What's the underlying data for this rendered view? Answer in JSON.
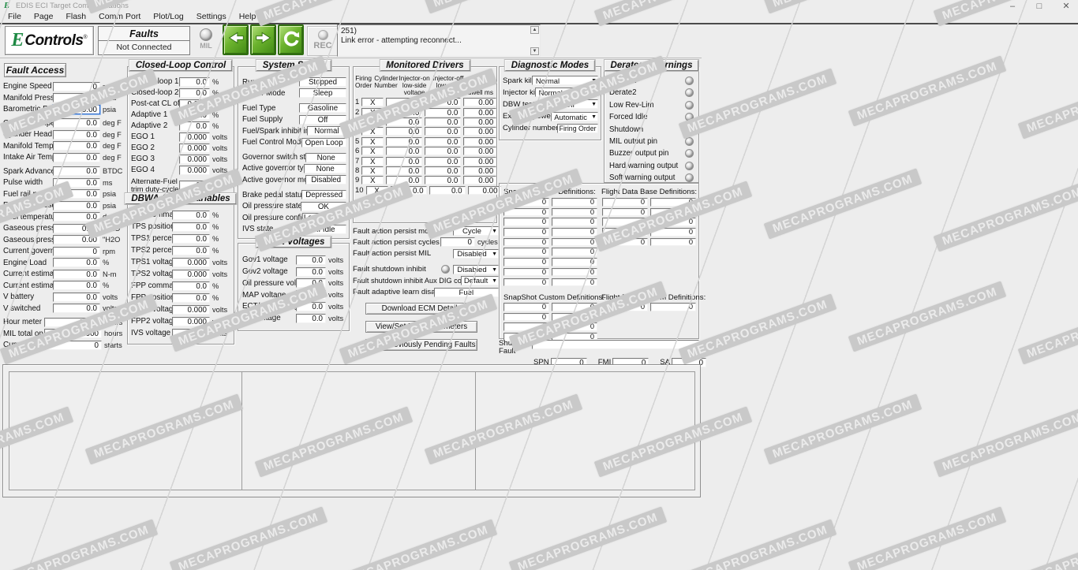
{
  "watermark": {
    "text": "MECAPROGRAMS.COM"
  },
  "window": {
    "title": "EDIS ECI Target Communications",
    "icon": "E",
    "controls": {
      "minimize": "–",
      "maximize": "□",
      "close": "✕"
    }
  },
  "menu": {
    "items": [
      {
        "label": "File"
      },
      {
        "label": "Page"
      },
      {
        "label": "Flash"
      },
      {
        "label": "Comm Port"
      },
      {
        "label": "Plot/Log"
      },
      {
        "label": "Settings"
      },
      {
        "label": "Help"
      }
    ]
  },
  "toolbar": {
    "logo": {
      "e": "E",
      "rest": "Controls",
      "reg": "®"
    },
    "faults_label": "Faults",
    "connection_status": "Not Connected",
    "mil_label": "MIL",
    "rec_label": "REC",
    "message": {
      "line1": "251)",
      "line2": "Link error - attempting reconnect..."
    }
  },
  "fault_access": {
    "title": "Fault Access",
    "fields": [
      {
        "label": "Engine Speed",
        "value": "0",
        "unit": "rpm"
      },
      {
        "label": "Manifold Pressure",
        "value": "0.00",
        "unit": "psia"
      },
      {
        "label": "Barometric Pressure",
        "value": "0.00",
        "unit": "psia",
        "focused": true
      },
      {
        "label": "Coolant Temperature",
        "value": "0.0",
        "unit": "deg F",
        "gap": true
      },
      {
        "label": "Cylinder Head Temp",
        "value": "0.0",
        "unit": "deg F"
      },
      {
        "label": "Manifold Temperature",
        "value": "0.0",
        "unit": "deg F"
      },
      {
        "label": "Intake Air Temperature",
        "value": "0.0",
        "unit": "deg F"
      },
      {
        "label": "Spark Advance",
        "value": "0.0",
        "unit": "BTDC",
        "gap": true
      },
      {
        "label": "Pulse width",
        "value": "0.0",
        "unit": "ms"
      },
      {
        "label": "Fuel rail pressure - Pri",
        "value": "0.0",
        "unit": "psia"
      },
      {
        "label": "Fuel rail pressure - Sec",
        "value": "0.0",
        "unit": "psia"
      },
      {
        "label": "Fuel temperature",
        "value": "0.0",
        "unit": "deg F"
      },
      {
        "label": "Gaseous pressure target",
        "value": "0.00",
        "unit": "\"H2O"
      },
      {
        "label": "Gaseous pressure actual",
        "value": "0.00",
        "unit": "\"H2O"
      },
      {
        "label": "Current governor target",
        "value": "0",
        "unit": "rpm"
      },
      {
        "label": "Engine Load",
        "value": "0.0",
        "unit": "%"
      },
      {
        "label": "Current estimated torque",
        "value": "0.0",
        "unit": "N-m"
      },
      {
        "label": "Current estimated torque",
        "value": "0.0",
        "unit": "%"
      },
      {
        "label": "V battery",
        "value": "0.0",
        "unit": "volts"
      },
      {
        "label": "V switched",
        "value": "0.0",
        "unit": "volts"
      },
      {
        "label": "Hour meter",
        "value": "0.000",
        "unit": "hours",
        "gap": true,
        "wide": true
      },
      {
        "label": "MIL total on-time",
        "value": "0.000",
        "unit": "hours",
        "wide": true
      },
      {
        "label": "Cumulative starts",
        "value": "0",
        "unit": "starts",
        "wide": true
      }
    ]
  },
  "closed_loop": {
    "title": "Closed-Loop Control",
    "fields": [
      {
        "label": "Closed-loop 1",
        "value": "0.0",
        "unit": "%"
      },
      {
        "label": "Closed-loop 2",
        "value": "0.0",
        "unit": "%"
      },
      {
        "label": "Post-cat CL offset",
        "value": "0.000",
        "unit": "phi"
      },
      {
        "label": "Adaptive 1",
        "value": "0.0",
        "unit": "%"
      },
      {
        "label": "Adaptive 2",
        "value": "0.0",
        "unit": "%"
      },
      {
        "label": "EGO 1",
        "value": "0.000",
        "unit": "volts"
      },
      {
        "label": "EGO 2",
        "value": "0.000",
        "unit": "volts"
      },
      {
        "label": "EGO 3",
        "value": "0.000",
        "unit": "volts"
      },
      {
        "label": "EGO 4",
        "value": "0.000",
        "unit": "volts"
      },
      {
        "label": "Alternate-Fuel trim duty-cycle",
        "value": "0.0",
        "unit": "%"
      }
    ]
  },
  "dbwa": {
    "title": "DBWA & FPP Variables",
    "fields": [
      {
        "label": "TPS command",
        "value": "0.0",
        "unit": "%"
      },
      {
        "label": "TPS position",
        "value": "0.0",
        "unit": "%"
      },
      {
        "label": "TPS1 percent",
        "value": "0.0",
        "unit": "%"
      },
      {
        "label": "TPS2 percent",
        "value": "0.0",
        "unit": "%"
      },
      {
        "label": "TPS1 voltage",
        "value": "0.000",
        "unit": "volts"
      },
      {
        "label": "TPS2 voltage",
        "value": "0.000",
        "unit": "volts"
      },
      {
        "label": "FPP command",
        "value": "0.0",
        "unit": "%"
      },
      {
        "label": "FPP position",
        "value": "0.0",
        "unit": "%"
      },
      {
        "label": "FPP1 voltage",
        "value": "0.000",
        "unit": "volts"
      },
      {
        "label": "FPP2 voltage",
        "value": "0.000",
        "unit": "volts"
      },
      {
        "label": "IVS voltage",
        "value": "0.000",
        "unit": "volts"
      }
    ]
  },
  "system_states": {
    "title": "System States",
    "rows": [
      {
        "label": "Run Mode",
        "value": "Stopped"
      },
      {
        "label": "Power Mode",
        "value": "Sleep"
      },
      {
        "label": "Fuel Type",
        "value": "Gasoline",
        "gap": true
      },
      {
        "label": "Fuel Supply",
        "value": "Off"
      },
      {
        "label": "Fuel/Spark inhibit input",
        "value": "Normal"
      },
      {
        "label": "Fuel Control Mode",
        "value": "Open Loop"
      },
      {
        "label": "Governor switch state",
        "value": "None",
        "gap": true
      },
      {
        "label": "Active governor type",
        "value": "None"
      },
      {
        "label": "Active governor mode",
        "value": "Disabled"
      },
      {
        "label": "Brake pedal status",
        "value": "Depressed",
        "gap": true
      },
      {
        "label": "Oil pressure state",
        "value": "OK"
      },
      {
        "label": "Oil pressure config",
        "value": "Low V = OK"
      },
      {
        "label": "IVS state",
        "value": "Off Idle"
      }
    ]
  },
  "input_voltages": {
    "title": "Input Voltages",
    "fields": [
      {
        "label": "Gov1 voltage",
        "value": "0.0",
        "unit": "volts"
      },
      {
        "label": "Gov2 voltage",
        "value": "0.0",
        "unit": "volts"
      },
      {
        "label": "Oil pressure voltage",
        "value": "0.0",
        "unit": "volts"
      },
      {
        "label": "MAP voltage",
        "value": "0.0",
        "unit": "volts"
      },
      {
        "label": "ECT/CHT voltage",
        "value": "0.0",
        "unit": "volts"
      },
      {
        "label": "IAT voltage",
        "value": "0.0",
        "unit": "volts"
      }
    ]
  },
  "monitored_drivers": {
    "title": "Monitored Drivers",
    "headers": {
      "col1": "Firing\nOrder",
      "col2": "Cylinder\nNumber",
      "col3": "Injector-on\nlow-side\nvoltage",
      "col4": "Injector-off\nlow-side\nvoltage",
      "col5": "Spark Coil\ndwell ms"
    },
    "rows": [
      {
        "order": "1",
        "cyl": "X",
        "on": "0.0",
        "off": "0.0",
        "dwell": "0.00"
      },
      {
        "order": "2",
        "cyl": "X",
        "on": "0.0",
        "off": "0.0",
        "dwell": "0.00"
      },
      {
        "order": "3",
        "cyl": "X",
        "on": "0.0",
        "off": "0.0",
        "dwell": "0.00"
      },
      {
        "order": "4",
        "cyl": "X",
        "on": "0.0",
        "off": "0.0",
        "dwell": "0.00"
      },
      {
        "order": "5",
        "cyl": "X",
        "on": "0.0",
        "off": "0.0",
        "dwell": "0.00"
      },
      {
        "order": "6",
        "cyl": "X",
        "on": "0.0",
        "off": "0.0",
        "dwell": "0.00"
      },
      {
        "order": "7",
        "cyl": "X",
        "on": "0.0",
        "off": "0.0",
        "dwell": "0.00"
      },
      {
        "order": "8",
        "cyl": "X",
        "on": "0.0",
        "off": "0.0",
        "dwell": "0.00"
      },
      {
        "order": "9",
        "cyl": "X",
        "on": "0.0",
        "off": "0.0",
        "dwell": "0.00"
      },
      {
        "order": "10",
        "cyl": "X",
        "on": "0.0",
        "off": "0.0",
        "dwell": "0.00"
      }
    ]
  },
  "fault_actions": {
    "persist_mode": {
      "label": "Fault action persist mode",
      "value": "Cycle"
    },
    "persist_cycles": {
      "label": "Fault action persist cycles",
      "value": "0",
      "unit": "cycles"
    },
    "persist_mil": {
      "label": "Fault action persist MIL",
      "value": "Disabled"
    },
    "shutdown_inhibit": {
      "label": "Fault shutdown inhibit",
      "value": "Disabled"
    },
    "aux_dig": {
      "label": "Fault shutdown inhibit Aux DIG config",
      "value": "Default"
    },
    "adaptive_learn": {
      "label": "Fault adaptive learn disable",
      "value": "Fuel"
    },
    "buttons": {
      "download": "Download ECM Details",
      "view_set": "View/Set Fault Parameters",
      "view_pending": "View Previously Pending Faults"
    }
  },
  "diagnostic_modes": {
    "title": "Diagnostic Modes",
    "rows": [
      {
        "label": "Spark kill",
        "value": "Normal",
        "type": "dropdown",
        "wide": true
      },
      {
        "label": "Injector kill",
        "value": "Normal",
        "type": "dropdown",
        "wide": true
      },
      {
        "label": "DBW test",
        "value": "Off",
        "type": "dropdown"
      },
      {
        "label": "External power",
        "value": "Automatic",
        "type": "dropdown"
      },
      {
        "label": "Cylinder numbering",
        "value": "Firing Order",
        "type": "box"
      }
    ]
  },
  "derates": {
    "title": "Derates / Warnings",
    "items": [
      "Derate1",
      "Derate2",
      "Low Rev-Lim",
      "Forced Idle",
      "Shutdown",
      "MIL output pin",
      "Buzzer output pin",
      "Hard warning output",
      "Soft warning output"
    ]
  },
  "definitions": {
    "snapshot_base_label": "SnapShot Base Definitions:",
    "flight_base_label": "Flight Data Base Definitions:",
    "snapshot_custom_label": "SnapShot Custom Definitions:",
    "flight_custom_label": "Flight Data Custom Definitions:",
    "snapshot_base_col1": [
      "0",
      "0",
      "0",
      "0",
      "0",
      "0",
      "0",
      "0",
      "0"
    ],
    "snapshot_base_col2": [
      "0",
      "0",
      "0",
      "0",
      "0",
      "0",
      "0",
      "0",
      "0"
    ],
    "flight_base_col1": [
      "0",
      "0",
      "0",
      "0",
      "0"
    ],
    "flight_base_col2": [
      "0",
      "0",
      "0",
      "0",
      "0"
    ],
    "snapshot_custom_col1": [
      "0",
      "0",
      "0",
      "0"
    ],
    "snapshot_custom_col2": [
      "0",
      "0",
      "0",
      "0"
    ],
    "flight_custom_col1": [
      "0"
    ],
    "flight_custom_col2": [
      "0"
    ]
  },
  "shutdown_fault": {
    "label": "Shutdown\nFault",
    "value": "",
    "spn_label": "SPN",
    "spn": "0",
    "fmi_label": "FMI",
    "fmi": "0",
    "sa_label": "SA",
    "sa": "0"
  }
}
